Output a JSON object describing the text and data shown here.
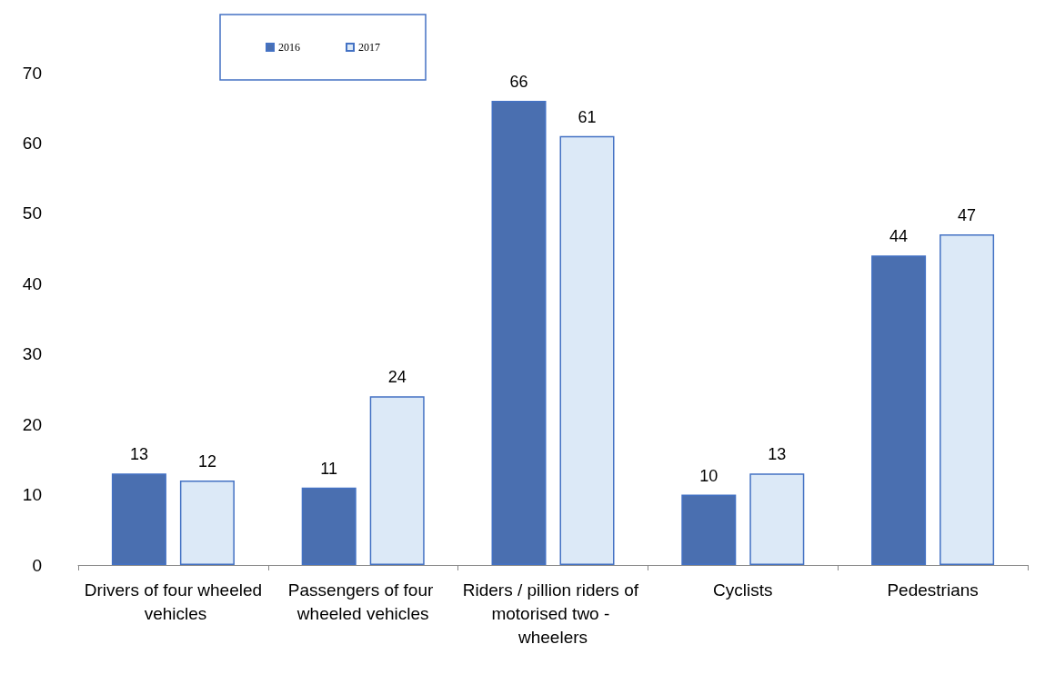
{
  "chart_data": {
    "type": "bar",
    "categories": [
      "Drivers of four wheeled vehicles",
      "Passengers of four wheeled vehicles",
      "Riders / pillion riders of motorised two - wheelers",
      "Cyclists",
      "Pedestrians"
    ],
    "series": [
      {
        "name": "2016",
        "color": "#4a6fb0",
        "values": [
          13,
          11,
          66,
          10,
          44
        ]
      },
      {
        "name": "2017",
        "color": "#dce9f7",
        "values": [
          12,
          24,
          61,
          13,
          47
        ]
      }
    ],
    "ylim": [
      0,
      70
    ],
    "yticks": [
      0,
      10,
      20,
      30,
      40,
      50,
      60,
      70
    ],
    "grid": false,
    "legend": "top",
    "data_labels": true
  }
}
